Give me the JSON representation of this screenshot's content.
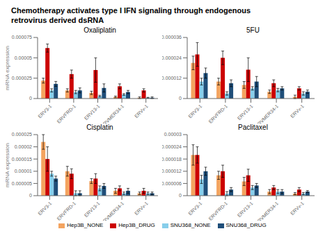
{
  "title": "Chemotherapy activates type I IFN signaling through endogenous\nretrovirus derived dsRNA",
  "legend": "bottom",
  "chart_data": [
    {
      "type": "bar",
      "title": "Oxaliplatin",
      "ylabel": "mRNA expression",
      "grid": false,
      "categories": [
        "ERV3-1",
        "ERVFRD-1",
        "ERV13-1",
        "ERVMER34-1",
        "ERVv-1"
      ],
      "ylim": [
        0,
        7.5e-05
      ],
      "yticks": [
        0,
        2.5e-05,
        5e-05,
        7.5e-05
      ],
      "series": [
        {
          "name": "Hep3B_NONE",
          "color": "#F4A460",
          "values": [
            2.2e-05,
            1e-05,
            7e-06,
            2e-06,
            1e-06
          ],
          "errors": [
            3e-06,
            2e-06,
            2e-06,
            1e-06,
            1e-06
          ]
        },
        {
          "name": "Hep3B_DRUG",
          "color": "#CC0000",
          "values": [
            6.2e-05,
            3e-05,
            3.5e-05,
            1.5e-05,
            1e-05
          ],
          "errors": [
            5e-06,
            5e-06,
            1.5e-05,
            3e-06,
            2e-06
          ]
        },
        {
          "name": "SNU368_NONE",
          "color": "#87CEEB",
          "values": [
            1e-05,
            8e-06,
            3e-06,
            5e-06,
            1e-06
          ],
          "errors": [
            2e-06,
            2e-06,
            1e-06,
            1e-06,
            5e-07
          ]
        },
        {
          "name": "SNU368_DRUG",
          "color": "#1F4E79",
          "values": [
            1.8e-05,
            1e-05,
            1.3e-05,
            8e-06,
            1e-06
          ],
          "errors": [
            3e-06,
            3e-06,
            5e-06,
            2e-06,
            1e-06
          ]
        }
      ]
    },
    {
      "type": "bar",
      "title": "5FU",
      "grid": false,
      "categories": [
        "ERV3-1",
        "ERVFRD-1",
        "ERV13-1",
        "ERVMER34-1",
        "ERVv-1"
      ],
      "ylim": [
        0,
        3.6e-05
      ],
      "yticks": [
        0,
        1.2e-05,
        2.4e-05,
        3.6e-05
      ],
      "series": [
        {
          "name": "Hep3B_NONE",
          "color": "#F4A460",
          "values": [
            2.1e-05,
            1e-05,
            8e-06,
            4e-06,
            1e-06
          ],
          "errors": [
            4e-06,
            2e-06,
            2e-06,
            1e-06,
            1e-06
          ]
        },
        {
          "name": "Hep3B_DRUG",
          "color": "#CC0000",
          "values": [
            2.6e-05,
            2.4e-05,
            1.7e-05,
            9e-06,
            6e-06
          ],
          "errors": [
            7e-06,
            4e-06,
            7e-06,
            2e-06,
            1e-06
          ]
        },
        {
          "name": "SNU368_NONE",
          "color": "#87CEEB",
          "values": [
            1e-05,
            3e-06,
            6e-06,
            5e-06,
            3e-06
          ],
          "errors": [
            2e-06,
            1e-06,
            1e-06,
            1e-06,
            1e-06
          ]
        },
        {
          "name": "SNU368_DRUG",
          "color": "#1F4E79",
          "values": [
            1.5e-05,
            9e-06,
            1e-05,
            6e-06,
            4e-06
          ],
          "errors": [
            3e-06,
            2e-06,
            3e-06,
            1e-06,
            1e-06
          ]
        }
      ]
    },
    {
      "type": "bar",
      "title": "Cisplatin",
      "ylabel": "mRNA expression",
      "grid": false,
      "categories": [
        "ERV3-1",
        "ERVFRD-1",
        "ERV13-1",
        "ERVMER34-1",
        "ERVv-1"
      ],
      "ylim": [
        0,
        2.5e-05
      ],
      "yticks": [
        0,
        5e-06,
        1e-05,
        1.5e-05,
        2e-05,
        2.5e-05
      ],
      "series": [
        {
          "name": "Hep3B_NONE",
          "color": "#F4A460",
          "values": [
            2.2e-05,
            1e-05,
            6e-06,
            2e-06,
            1e-06
          ],
          "errors": [
            3e-06,
            2e-06,
            1e-06,
            1e-06,
            5e-07
          ]
        },
        {
          "name": "Hep3B_DRUG",
          "color": "#CC0000",
          "values": [
            1.5e-05,
            9e-06,
            7e-06,
            3e-06,
            2e-06
          ],
          "errors": [
            5e-06,
            2e-06,
            2e-06,
            1e-06,
            1e-06
          ]
        },
        {
          "name": "SNU368_NONE",
          "color": "#87CEEB",
          "values": [
            9e-06,
            1e-06,
            3e-06,
            1e-06,
            1e-06
          ],
          "errors": [
            1e-06,
            1e-06,
            1e-06,
            5e-07,
            5e-07
          ]
        },
        {
          "name": "SNU368_DRUG",
          "color": "#1F4E79",
          "values": [
            7e-06,
            1e-06,
            4e-06,
            2e-06,
            1e-06
          ],
          "errors": [
            1e-06,
            1e-06,
            1e-06,
            1e-06,
            5e-07
          ]
        }
      ]
    },
    {
      "type": "bar",
      "title": "Paclitaxel",
      "grid": false,
      "categories": [
        "ERV3-1",
        "ERVFRD-1",
        "ERV13-1",
        "ERVMER34-1",
        "ERVv-1"
      ],
      "ylim": [
        0,
        3e-05
      ],
      "yticks": [
        0,
        6e-06,
        1.2e-05,
        1.8e-05,
        2.4e-05,
        3e-05
      ],
      "series": [
        {
          "name": "Hep3B_NONE",
          "color": "#F4A460",
          "values": [
            2e-05,
            1e-05,
            7e-06,
            2e-06,
            1e-06
          ],
          "errors": [
            5e-06,
            2e-06,
            2e-06,
            1e-06,
            5e-07
          ]
        },
        {
          "name": "Hep3B_DRUG",
          "color": "#CC0000",
          "values": [
            2e-05,
            1.2e-05,
            1e-05,
            4e-06,
            3e-06
          ],
          "errors": [
            4e-06,
            3e-06,
            3e-06,
            1e-06,
            1e-06
          ]
        },
        {
          "name": "SNU368_NONE",
          "color": "#87CEEB",
          "values": [
            8e-06,
            1e-06,
            4e-06,
            2e-06,
            1e-06
          ],
          "errors": [
            2e-06,
            1e-06,
            1e-06,
            1e-06,
            5e-07
          ]
        },
        {
          "name": "SNU368_DRUG",
          "color": "#1F4E79",
          "values": [
            1.2e-05,
            3e-06,
            5e-06,
            2e-06,
            2e-06
          ],
          "errors": [
            2e-06,
            1e-06,
            1e-06,
            1e-06,
            5e-07
          ]
        }
      ]
    }
  ]
}
